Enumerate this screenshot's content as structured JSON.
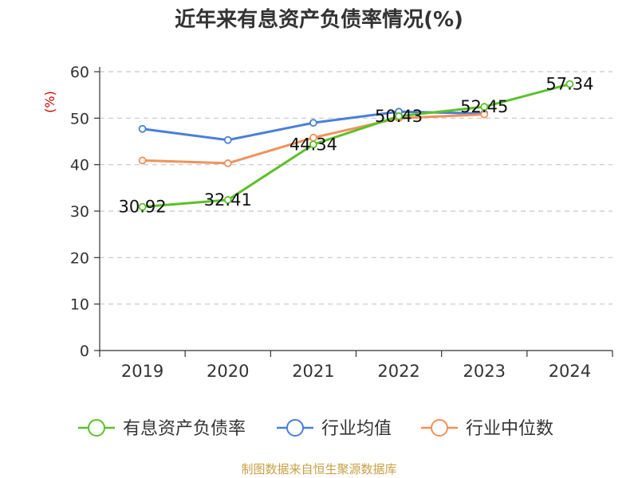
{
  "chart_data": {
    "type": "line",
    "title": "近年来有息资产负债率情况(%)",
    "y_unit": "(%)",
    "categories": [
      "2019",
      "2020",
      "2021",
      "2022",
      "2023",
      "2024"
    ],
    "y_ticks": [
      0,
      10,
      20,
      30,
      40,
      50,
      60
    ],
    "ylim": [
      0,
      60
    ],
    "grid": "horizontal-dashed",
    "legend_position": "bottom",
    "series": [
      {
        "name": "有息资产负债率",
        "color": "#5cc12a",
        "values": [
          30.92,
          32.41,
          44.34,
          50.43,
          52.45,
          57.34
        ],
        "labels": [
          "30.92",
          "32.41",
          "44.34",
          "50.43",
          "52.45",
          "57.34"
        ]
      },
      {
        "name": "行业均值",
        "color": "#4a7fd8",
        "values": [
          47.7,
          45.3,
          49.0,
          51.4,
          51.0,
          null
        ]
      },
      {
        "name": "行业中位数",
        "color": "#f2915a",
        "values": [
          40.9,
          40.3,
          45.8,
          50.0,
          50.8,
          null
        ]
      }
    ]
  },
  "footer": {
    "source": "制图数据来自恒生聚源数据库"
  }
}
